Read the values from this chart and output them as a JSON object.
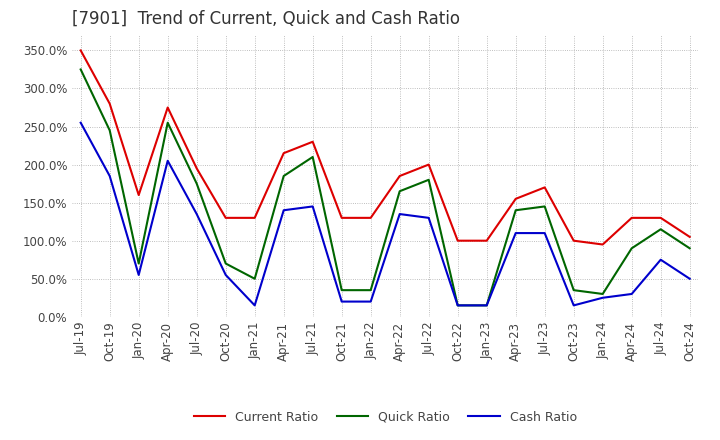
{
  "title": "[7901]  Trend of Current, Quick and Cash Ratio",
  "x_labels": [
    "Jul-19",
    "Oct-19",
    "Jan-20",
    "Apr-20",
    "Jul-20",
    "Oct-20",
    "Jan-21",
    "Apr-21",
    "Jul-21",
    "Oct-21",
    "Jan-22",
    "Apr-22",
    "Jul-22",
    "Oct-22",
    "Jan-23",
    "Apr-23",
    "Jul-23",
    "Oct-23",
    "Jan-24",
    "Apr-24",
    "Jul-24",
    "Oct-24"
  ],
  "current_ratio": [
    350,
    280,
    160,
    275,
    195,
    130,
    130,
    215,
    230,
    130,
    130,
    185,
    200,
    100,
    100,
    155,
    170,
    100,
    95,
    130,
    130,
    105
  ],
  "quick_ratio": [
    325,
    245,
    70,
    255,
    175,
    70,
    50,
    185,
    210,
    35,
    35,
    165,
    180,
    15,
    15,
    140,
    145,
    35,
    30,
    90,
    115,
    90
  ],
  "cash_ratio": [
    255,
    185,
    55,
    205,
    135,
    55,
    15,
    140,
    145,
    20,
    20,
    135,
    130,
    15,
    15,
    110,
    110,
    15,
    25,
    30,
    75,
    50
  ],
  "ylim": [
    0,
    370
  ],
  "yticks": [
    0,
    50,
    100,
    150,
    200,
    250,
    300,
    350
  ],
  "current_color": "#DD0000",
  "quick_color": "#006600",
  "cash_color": "#0000CC",
  "background_color": "#FFFFFF",
  "grid_color": "#AAAAAA",
  "title_color": "#333333",
  "title_fontsize": 12,
  "legend_fontsize": 9,
  "tick_fontsize": 8.5
}
